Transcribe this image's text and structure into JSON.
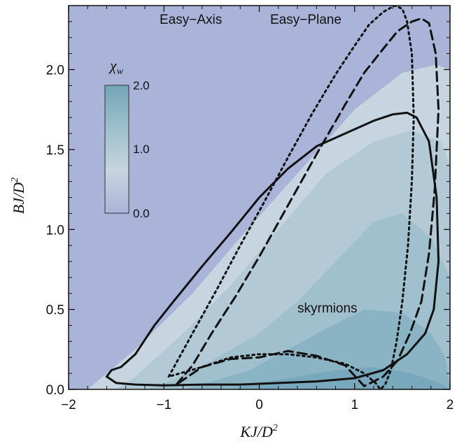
{
  "chart_data": {
    "type": "heatmap",
    "xlabel": "KJ/D",
    "xlabel_sup": "2",
    "ylabel": "BJ/D",
    "ylabel_sup": "2",
    "xlim": [
      -2,
      2
    ],
    "ylim": [
      0,
      2.4
    ],
    "xticks": [
      -2,
      -1,
      0,
      1,
      2
    ],
    "xtick_labels": [
      "−2",
      "−1",
      "0",
      "1",
      "2"
    ],
    "yticks": [
      0,
      0.5,
      1.0,
      1.5,
      2.0
    ],
    "ytick_labels": [
      "0.0",
      "0.5",
      "1.0",
      "1.5",
      "2.0"
    ],
    "colorbar": {
      "title": "χ",
      "title_sub": "w",
      "ticks": [
        "2.0",
        "1.0",
        "0.0"
      ],
      "range": [
        0,
        2
      ],
      "colors": [
        "#aab4d9",
        "#c6d5df",
        "#9fc0cc",
        "#73a5b8"
      ]
    },
    "annotations": {
      "easy_axis": "Easy−Axis",
      "easy_plane": "Easy−Plane",
      "skyrmions": "skyrmions"
    },
    "contour_levels": [
      {
        "level": 0.2,
        "color": "#c6d5df",
        "boundary": [
          [
            -1.8,
            0
          ],
          [
            -1.7,
            0.05
          ],
          [
            -1.3,
            0.25
          ],
          [
            -0.7,
            0.6
          ],
          [
            -0.2,
            0.95
          ],
          [
            0.4,
            1.35
          ],
          [
            1.0,
            1.75
          ],
          [
            1.5,
            1.98
          ],
          [
            1.85,
            2.03
          ],
          [
            2,
            2.0
          ],
          [
            2,
            0
          ]
        ]
      },
      {
        "level": 0.6,
        "color": "#b3cad6",
        "boundary": [
          [
            -1.5,
            0
          ],
          [
            -1.3,
            0.08
          ],
          [
            -0.8,
            0.35
          ],
          [
            -0.3,
            0.65
          ],
          [
            0.2,
            1.0
          ],
          [
            0.7,
            1.35
          ],
          [
            1.2,
            1.55
          ],
          [
            1.6,
            1.62
          ],
          [
            1.9,
            1.55
          ],
          [
            2,
            1.4
          ],
          [
            2,
            0
          ]
        ]
      },
      {
        "level": 1.0,
        "color": "#a0c0ce",
        "boundary": [
          [
            -1.2,
            0
          ],
          [
            -0.9,
            0.06
          ],
          [
            -0.5,
            0.18
          ],
          [
            0.0,
            0.35
          ],
          [
            0.4,
            0.55
          ],
          [
            0.8,
            0.8
          ],
          [
            1.2,
            1.05
          ],
          [
            1.5,
            1.1
          ],
          [
            1.8,
            0.95
          ],
          [
            2,
            0.7
          ],
          [
            2,
            0
          ]
        ]
      },
      {
        "level": 1.4,
        "color": "#8ab3c4",
        "boundary": [
          [
            -0.8,
            0
          ],
          [
            -0.5,
            0.05
          ],
          [
            -0.1,
            0.12
          ],
          [
            0.3,
            0.25
          ],
          [
            0.7,
            0.38
          ],
          [
            1.1,
            0.5
          ],
          [
            1.5,
            0.48
          ],
          [
            1.8,
            0.35
          ],
          [
            1.95,
            0.2
          ],
          [
            2,
            0
          ]
        ]
      },
      {
        "level": 1.8,
        "color": "#78a8bb",
        "boundary": [
          [
            -0.3,
            0
          ],
          [
            0.0,
            0.04
          ],
          [
            0.4,
            0.08
          ],
          [
            0.8,
            0.12
          ],
          [
            1.2,
            0.14
          ],
          [
            1.6,
            0.1
          ],
          [
            1.9,
            0.04
          ],
          [
            2,
            0
          ]
        ]
      }
    ],
    "series": [
      {
        "name": "skyrmions",
        "style": "solid",
        "x": [
          -1.6,
          -1.55,
          -1.45,
          -1.3,
          -1.1,
          -0.9,
          -0.6,
          -0.3,
          0.0,
          0.3,
          0.6,
          0.9,
          1.2,
          1.4,
          1.55,
          1.65,
          1.78,
          1.86,
          1.88,
          1.83,
          1.74,
          1.55,
          1.3,
          1.0,
          0.6,
          0.2,
          -0.2,
          -0.6,
          -1.0,
          -1.3,
          -1.5,
          -1.6
        ],
        "y": [
          0.08,
          0.12,
          0.14,
          0.22,
          0.4,
          0.55,
          0.77,
          0.98,
          1.2,
          1.38,
          1.52,
          1.6,
          1.68,
          1.72,
          1.73,
          1.7,
          1.55,
          1.2,
          0.8,
          0.5,
          0.35,
          0.22,
          0.12,
          0.07,
          0.05,
          0.04,
          0.03,
          0.03,
          0.025,
          0.03,
          0.04,
          0.08
        ]
      },
      {
        "name": "Easy-Plane",
        "style": "dashed",
        "x": [
          -0.87,
          -0.7,
          -0.5,
          -0.25,
          0.0,
          0.3,
          0.6,
          0.9,
          1.1,
          1.3,
          1.45,
          1.6,
          1.7,
          1.78,
          1.85,
          1.88,
          1.84,
          1.78,
          1.7,
          1.58,
          1.45,
          1.3,
          1.1,
          0.9,
          0.6,
          0.3,
          0.0,
          -0.3,
          -0.6,
          -0.87
        ],
        "y": [
          0.03,
          0.15,
          0.35,
          0.58,
          0.83,
          1.15,
          1.47,
          1.78,
          1.98,
          2.13,
          2.24,
          2.3,
          2.32,
          2.29,
          2.1,
          1.75,
          1.25,
          0.85,
          0.55,
          0.35,
          0.18,
          0.08,
          0.02,
          0.15,
          0.21,
          0.24,
          0.2,
          0.19,
          0.14,
          0.03
        ]
      },
      {
        "name": "Easy-Axis",
        "style": "dotted",
        "x": [
          -0.95,
          -0.7,
          -0.45,
          -0.2,
          0.05,
          0.3,
          0.55,
          0.8,
          1.0,
          1.15,
          1.3,
          1.42,
          1.5,
          1.55,
          1.6,
          1.62,
          1.6,
          1.56,
          1.5,
          1.44,
          1.38,
          1.32,
          1.27,
          1.22,
          1.1,
          0.9,
          0.6,
          0.3,
          0.0,
          -0.3,
          -0.6,
          -0.95
        ],
        "y": [
          0.08,
          0.35,
          0.62,
          0.9,
          1.17,
          1.45,
          1.72,
          1.97,
          2.15,
          2.28,
          2.36,
          2.4,
          2.38,
          2.3,
          2.1,
          1.7,
          1.3,
          0.9,
          0.55,
          0.3,
          0.12,
          0.03,
          0.0,
          0.04,
          0.1,
          0.16,
          0.2,
          0.22,
          0.22,
          0.2,
          0.14,
          0.08
        ]
      }
    ]
  }
}
